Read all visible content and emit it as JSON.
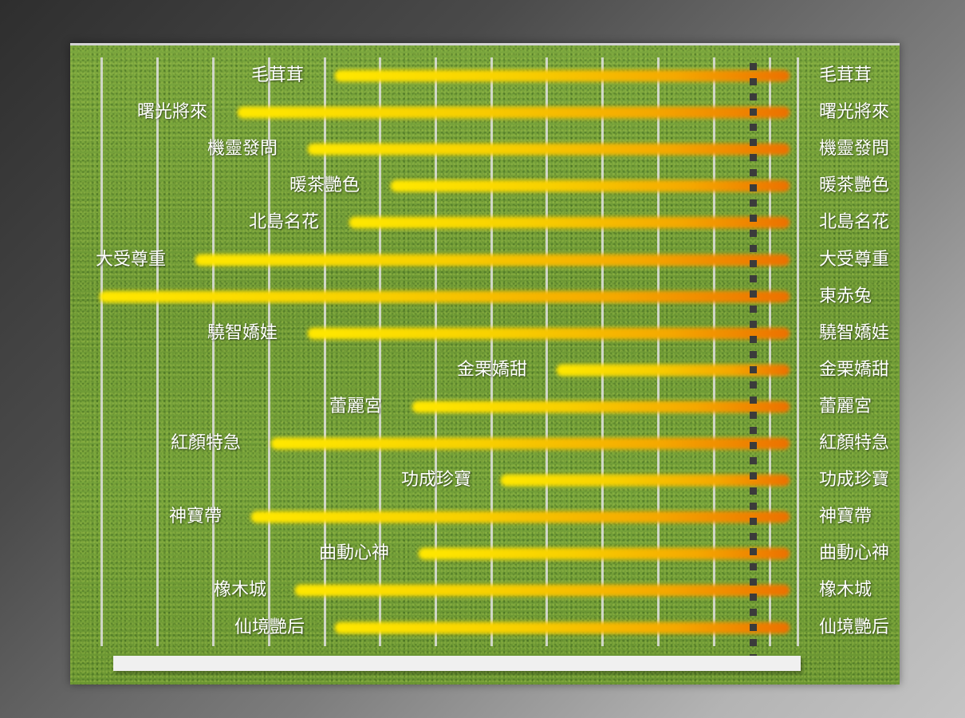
{
  "chart_data": {
    "type": "bar",
    "orientation": "horizontal",
    "title": "",
    "xlabel": "",
    "ylabel": "",
    "grid": true,
    "legend": null,
    "notes": "Unlabeled horizontal bars on grass background; all bars end at a common finish (dotted line). Values are bar lengths estimated in grid-spacing units.",
    "categories": [
      "毛茸茸",
      "曙光將來",
      "機靈發問",
      "暖茶艷色",
      "北島名花",
      "大受尊重",
      "東赤兔",
      "驍智嬌娃",
      "金栗嬌甜",
      "蕾麗宮",
      "紅顏特急",
      "功成珍寶",
      "神寶帶",
      "曲動心神",
      "橡木城",
      "仙境艷后"
    ],
    "values": [
      8.1,
      9.9,
      8.6,
      7.1,
      7.9,
      10.6,
      12.4,
      8.6,
      4.2,
      6.8,
      9.3,
      5.2,
      9.6,
      6.6,
      8.9,
      8.1
    ],
    "xlim": [
      0,
      12.9
    ]
  },
  "colors": {
    "bar_start": "#ffe800",
    "bar_end": "#ec7000",
    "gridline": "#e1e1e1",
    "finish_line": "#3b3b3b",
    "label": "#ffffff"
  },
  "rows": [
    {
      "name": "毛茸茸",
      "left_label": "毛茸茸",
      "right_label": "毛茸茸",
      "start": 332,
      "label_right_edge": 293
    },
    {
      "name": "曙光將來",
      "left_label": "曙光將來",
      "right_label": "曙光將來",
      "start": 210,
      "label_right_edge": 172
    },
    {
      "name": "機靈發問",
      "left_label": "機靈發問",
      "right_label": "機靈發問",
      "start": 298,
      "label_right_edge": 260
    },
    {
      "name": "暖茶艷色",
      "left_label": "暖茶艷色",
      "right_label": "暖茶艷色",
      "start": 402,
      "label_right_edge": 363
    },
    {
      "name": "北島名花",
      "left_label": "北島名花",
      "right_label": "北島名花",
      "start": 350,
      "label_right_edge": 312
    },
    {
      "name": "大受尊重",
      "left_label": "大受尊重",
      "right_label": "大受尊重",
      "start": 157,
      "label_right_edge": 120
    },
    {
      "name": "東赤兔",
      "left_label": "",
      "right_label": "東赤兔",
      "start": 37,
      "label_right_edge": 0
    },
    {
      "name": "驍智嬌娃",
      "left_label": "驍智嬌娃",
      "right_label": "驍智嬌娃",
      "start": 298,
      "label_right_edge": 260
    },
    {
      "name": "金栗嬌甜",
      "left_label": "金栗嬌甜",
      "right_label": "金栗嬌甜",
      "start": 610,
      "label_right_edge": 573
    },
    {
      "name": "蕾麗宮",
      "left_label": "蕾麗宮",
      "right_label": "蕾麗宮",
      "start": 429,
      "label_right_edge": 391
    },
    {
      "name": "紅顏特急",
      "left_label": "紅顏特急",
      "right_label": "紅顏特急",
      "start": 252,
      "label_right_edge": 214
    },
    {
      "name": "功成珍寶",
      "left_label": "功成珍寶",
      "right_label": "功成珍寶",
      "start": 540,
      "label_right_edge": 503
    },
    {
      "name": "神寶帶",
      "left_label": "神寶帶",
      "right_label": "神寶帶",
      "start": 227,
      "label_right_edge": 190
    },
    {
      "name": "曲動心神",
      "left_label": "曲動心神",
      "right_label": "曲動心神",
      "start": 437,
      "label_right_edge": 400
    },
    {
      "name": "橡木城",
      "left_label": "橡木城",
      "right_label": "橡木城",
      "start": 282,
      "label_right_edge": 246
    },
    {
      "name": "仙境艷后",
      "left_label": "仙境艷后",
      "right_label": "仙境艷后",
      "start": 332,
      "label_right_edge": 294
    }
  ]
}
